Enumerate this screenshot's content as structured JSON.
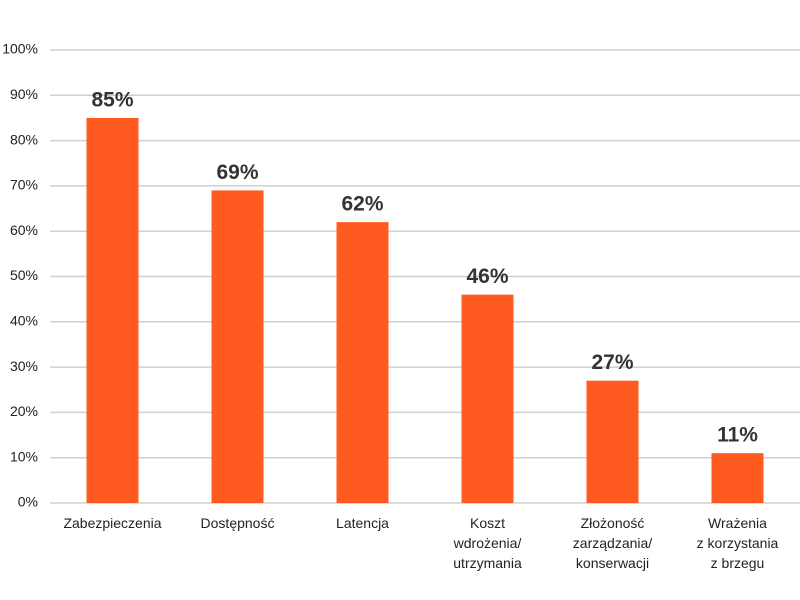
{
  "chart_data": {
    "type": "bar",
    "categories": [
      "Zabezpieczenia",
      "Dostępność",
      "Latencja",
      "Koszt\nwdrożenia/\nutrzymania",
      "Złożoność\nzarządzania/\nkonserwacji",
      "Wrażenia\nz korzystania\nz brzegu"
    ],
    "values": [
      85,
      69,
      62,
      46,
      27,
      11
    ],
    "value_labels": [
      "85%",
      "69%",
      "62%",
      "46%",
      "27%",
      "11%"
    ],
    "color": "#ff5a1f",
    "ylim": [
      0,
      100
    ],
    "yticks": [
      {
        "value": 0,
        "label": "0%"
      },
      {
        "value": 10,
        "label": "10%"
      },
      {
        "value": 20,
        "label": "20%"
      },
      {
        "value": 30,
        "label": "30%"
      },
      {
        "value": 40,
        "label": "40%"
      },
      {
        "value": 50,
        "label": "50%"
      },
      {
        "value": 60,
        "label": "60%"
      },
      {
        "value": 70,
        "label": "70%"
      },
      {
        "value": 80,
        "label": "80%"
      },
      {
        "value": 90,
        "label": "90%"
      },
      {
        "value": 100,
        "label": "100%"
      }
    ],
    "grid": true
  }
}
